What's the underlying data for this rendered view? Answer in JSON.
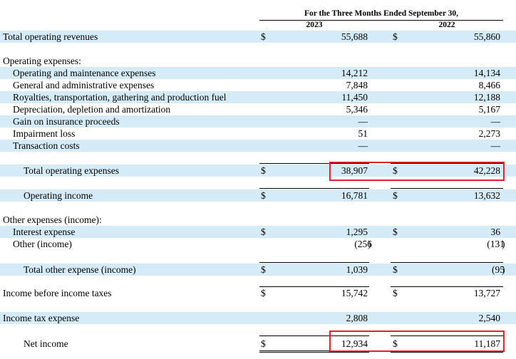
{
  "header": {
    "period": "For the Three Months Ended September 30,",
    "col1_year": "2023",
    "col2_year": "2022"
  },
  "currency": "$",
  "rows": {
    "total_operating_revenues": {
      "label": "Total operating revenues",
      "v2023": "55,688",
      "v2022": "55,860"
    },
    "operating_expenses_heading": {
      "label": "Operating expenses:"
    },
    "om_expenses": {
      "label": "Operating and maintenance expenses",
      "v2023": "14,212",
      "v2022": "14,134"
    },
    "ga_expenses": {
      "label": "General and administrative expenses",
      "v2023": "7,848",
      "v2022": "8,466"
    },
    "royalties": {
      "label": "Royalties, transportation, gathering and production fuel",
      "v2023": "11,450",
      "v2022": "12,188"
    },
    "dda": {
      "label": "Depreciation, depletion and amortization",
      "v2023": "5,346",
      "v2022": "5,167"
    },
    "insurance_gain": {
      "label": "Gain on insurance proceeds",
      "v2023": "—",
      "v2022": "—"
    },
    "impairment": {
      "label": "Impairment loss",
      "v2023": "51",
      "v2022": "2,273"
    },
    "transaction_costs": {
      "label": "Transaction costs",
      "v2023": "—",
      "v2022": "—"
    },
    "total_operating_expenses": {
      "label": "Total operating expenses",
      "v2023": "38,907",
      "v2022": "42,228"
    },
    "operating_income": {
      "label": "Operating income",
      "v2023": "16,781",
      "v2022": "13,632"
    },
    "other_heading": {
      "label": "Other expenses (income):"
    },
    "interest_expense": {
      "label": "Interest expense",
      "v2023": "1,295",
      "v2022": "36"
    },
    "other_income": {
      "label": "Other (income)",
      "v2023": "(256",
      "v2022": "(131"
    },
    "total_other": {
      "label": "Total other expense (income)",
      "v2023": "1,039",
      "v2022": "(95"
    },
    "income_before_taxes": {
      "label": "Income before income taxes",
      "v2023": "15,742",
      "v2022": "13,727"
    },
    "income_tax": {
      "label": "Income tax expense",
      "v2023": "2,808",
      "v2022": "2,540"
    },
    "net_income": {
      "label": "Net income",
      "v2023": "12,934",
      "v2022": "11,187"
    }
  },
  "closing_paren": ")",
  "highlight_color": "#e0202e",
  "shade_color": "#d5ecf8"
}
